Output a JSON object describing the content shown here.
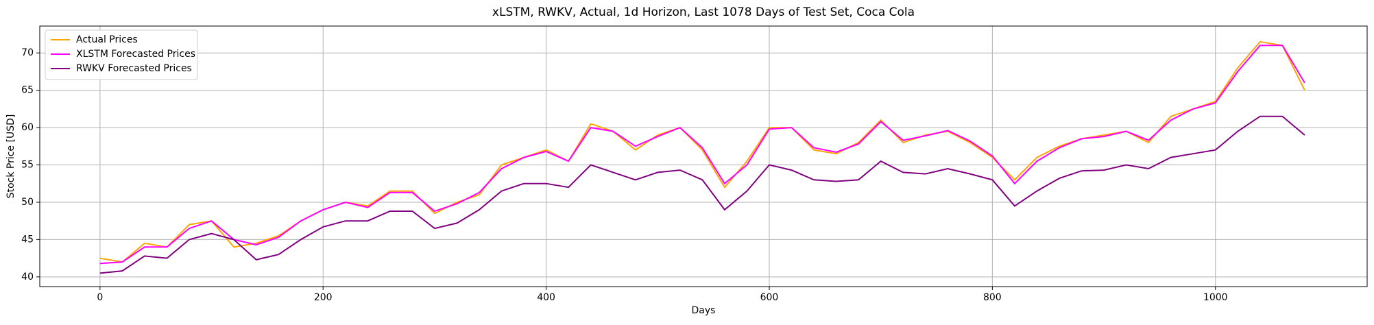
{
  "chart_data": {
    "type": "line",
    "title": "xLSTM, RWKV, Actual, 1d Horizon, Last 1078 Days of Test Set, Coca Cola",
    "xlabel": "Days",
    "ylabel": "Stock Price [USD]",
    "x": [
      0,
      20,
      40,
      60,
      80,
      100,
      120,
      140,
      160,
      180,
      200,
      220,
      240,
      260,
      280,
      300,
      320,
      340,
      360,
      380,
      400,
      420,
      440,
      460,
      480,
      500,
      520,
      540,
      560,
      580,
      600,
      620,
      640,
      660,
      680,
      700,
      720,
      740,
      760,
      780,
      800,
      820,
      840,
      860,
      880,
      900,
      920,
      940,
      960,
      980,
      1000,
      1020,
      1040,
      1060,
      1080
    ],
    "series": [
      {
        "name": "Actual Prices",
        "color": "#ffa500",
        "values": [
          42.5,
          42,
          44.5,
          44,
          47,
          47.5,
          44,
          44.5,
          45.5,
          47.5,
          49,
          50,
          49.5,
          51.5,
          51.5,
          48.5,
          50,
          51,
          55,
          56,
          57,
          55.5,
          60.5,
          59.5,
          57,
          59,
          60,
          57,
          52,
          55.5,
          60,
          60,
          57,
          56.5,
          58,
          61,
          58,
          59,
          59.5,
          58,
          56,
          53,
          56,
          57.5,
          58.5,
          59,
          59.5,
          58,
          61.5,
          62.5,
          63.5,
          68,
          71.5,
          71,
          65
        ]
      },
      {
        "name": "XLSTM Forecasted Prices",
        "color": "#ff00ff",
        "values": [
          41.8,
          42,
          44,
          44,
          46.5,
          47.5,
          45,
          44.3,
          45.3,
          47.5,
          49,
          50,
          49.3,
          51.3,
          51.3,
          48.8,
          49.8,
          51.3,
          54.5,
          56,
          56.8,
          55.5,
          60,
          59.5,
          57.5,
          58.8,
          60,
          57.3,
          52.5,
          55,
          59.8,
          60,
          57.3,
          56.7,
          57.8,
          60.8,
          58.3,
          58.9,
          59.6,
          58.2,
          56.2,
          52.5,
          55.5,
          57.3,
          58.5,
          58.8,
          59.5,
          58.3,
          61,
          62.5,
          63.3,
          67.5,
          71,
          71,
          66
        ]
      },
      {
        "name": "RWKV Forecasted Prices",
        "color": "#800080",
        "values": [
          40.5,
          40.8,
          42.8,
          42.5,
          45,
          45.8,
          45,
          42.3,
          43,
          45,
          46.7,
          47.5,
          47.5,
          48.8,
          48.8,
          46.5,
          47.2,
          49,
          51.5,
          52.5,
          52.5,
          52,
          55,
          54,
          53,
          54,
          54.3,
          53,
          49,
          51.5,
          55,
          54.3,
          53,
          52.8,
          53,
          55.5,
          54,
          53.8,
          54.5,
          53.8,
          53,
          49.5,
          51.5,
          53.2,
          54.2,
          54.3,
          55,
          54.5,
          56,
          56.5,
          57,
          59.5,
          61.5,
          61.5,
          59
        ]
      }
    ],
    "xlim": [
      -54,
      1136
    ],
    "xticks": [
      0,
      200,
      400,
      600,
      800,
      1000
    ],
    "ylim": [
      38.7,
      73.6
    ],
    "yticks": [
      40,
      45,
      50,
      55,
      60,
      65,
      70
    ],
    "grid": true,
    "legend": "upper left"
  }
}
